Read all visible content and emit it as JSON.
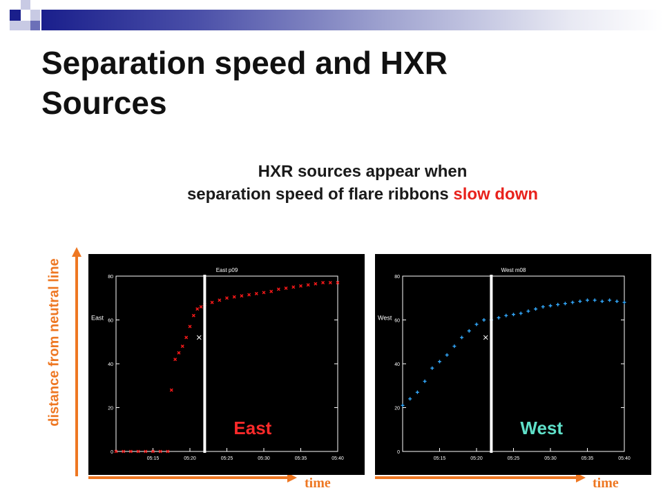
{
  "title": "Separation speed and HXR Sources",
  "subtitle": {
    "line1": "HXR sources appear when",
    "line2_prefix": "separation speed of flare ribbons ",
    "line2_highlight": "slow down"
  },
  "y_axis_label": "distance from neutral line",
  "time_label_left": "time",
  "time_label_right": "time",
  "colors": {
    "accent": "#ee7722",
    "highlight": "#e8221c",
    "header": "#1a1f8c"
  },
  "chart_data": [
    {
      "type": "scatter",
      "title": "East  p09",
      "ylabel": "East",
      "overlay_label": "East",
      "color": "#ff1a1a",
      "overlay_color": "#ff2a2a",
      "marker": "x",
      "ylim": [
        0,
        80
      ],
      "xlim": [
        "05:10",
        "05:40"
      ],
      "x_ticks": [
        "05:15",
        "05:20",
        "05:25",
        "05:30",
        "05:35",
        "05:40"
      ],
      "y_ticks": [
        "0",
        "20",
        "40",
        "60",
        "80"
      ],
      "hxr_time": "05:22",
      "hxr_marker": {
        "x": "05:21.8",
        "y": 52
      },
      "x_points": [
        "05:10",
        "05:11",
        "05:12",
        "05:13",
        "05:14",
        "05:15",
        "05:16",
        "05:17",
        "05:17.5",
        "05:18",
        "05:18.5",
        "05:19",
        "05:19.5",
        "05:20",
        "05:20.5",
        "05:21",
        "05:21.5",
        "05:22",
        "05:23",
        "05:24",
        "05:25",
        "05:26",
        "05:27",
        "05:28",
        "05:29",
        "05:30",
        "05:31",
        "05:32",
        "05:33",
        "05:34",
        "05:35",
        "05:36",
        "05:37",
        "05:38",
        "05:39",
        "05:40"
      ],
      "y_points": [
        0,
        0,
        0,
        0,
        0,
        0,
        0,
        0,
        28,
        42,
        45,
        48,
        52,
        57,
        62,
        65,
        66,
        67,
        68,
        69,
        70,
        70.5,
        71,
        71.5,
        72,
        72.5,
        73,
        74,
        74.5,
        75,
        75.5,
        76,
        76.5,
        77,
        77,
        77
      ]
    },
    {
      "type": "scatter",
      "title": "West  m08",
      "ylabel": "West",
      "overlay_label": "West",
      "color": "#33aaff",
      "overlay_color": "#5fe0c9",
      "marker": "+",
      "ylim": [
        0,
        80
      ],
      "xlim": [
        "05:10",
        "05:40"
      ],
      "x_ticks": [
        "05:15",
        "05:20",
        "05:25",
        "05:30",
        "05:35",
        "05:40"
      ],
      "y_ticks": [
        "0",
        "20",
        "40",
        "60",
        "80"
      ],
      "hxr_time": "05:22",
      "hxr_marker": {
        "x": "05:21.8",
        "y": 52
      },
      "x_points": [
        "05:10",
        "05:11",
        "05:12",
        "05:13",
        "05:14",
        "05:15",
        "05:16",
        "05:17",
        "05:18",
        "05:19",
        "05:20",
        "05:21",
        "05:22",
        "05:23",
        "05:24",
        "05:25",
        "05:26",
        "05:27",
        "05:28",
        "05:29",
        "05:30",
        "05:31",
        "05:32",
        "05:33",
        "05:34",
        "05:35",
        "05:36",
        "05:37",
        "05:38",
        "05:39",
        "05:40"
      ],
      "y_points": [
        21,
        24,
        27,
        32,
        38,
        41,
        44,
        48,
        52,
        55,
        58,
        60,
        60,
        61,
        62,
        62.5,
        63,
        64,
        65,
        66,
        66.5,
        67,
        67.5,
        68,
        68.5,
        69,
        69,
        68.5,
        69,
        68.5,
        68
      ]
    }
  ]
}
